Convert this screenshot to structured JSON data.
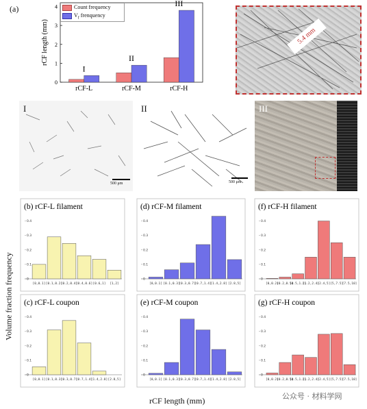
{
  "panel_a": {
    "label": "(a)"
  },
  "chart_a": {
    "type": "bar",
    "categories": [
      "rCF-L",
      "rCF-M",
      "rCF-H"
    ],
    "series": [
      {
        "name": "Count frequency",
        "values": [
          0.15,
          0.5,
          1.3
        ],
        "color": "#ef7a7a"
      },
      {
        "name": "Vf frenquency",
        "values": [
          0.35,
          0.9,
          3.8
        ],
        "color": "#6f6fe8"
      }
    ],
    "bar_labels": [
      "I",
      "II",
      "III"
    ],
    "ylabel": "rCF length (mm)",
    "yticks": [
      0,
      1,
      2,
      3,
      4
    ],
    "ylim": [
      0,
      4.2
    ]
  },
  "legend": {
    "count": "Count frequency",
    "vf_prefix": "V",
    "vf_sub": "f",
    "vf_suffix": " frenquency"
  },
  "photo_top": {
    "scale_label": "5.4 mm"
  },
  "micro": [
    {
      "label": "I",
      "scale": "500 μm"
    },
    {
      "label": "II",
      "scale": "500 μm"
    },
    {
      "label": "III",
      "scale": ""
    }
  ],
  "y_title": "Volume fraction frequency",
  "x_title": "rCF length (mm)",
  "watermark": "公众号 · 材料学网",
  "chart_data": [
    {
      "id": "b",
      "type": "bar",
      "title": "(b) rCF-L filament",
      "color": "#f8f3b0",
      "categories": [
        "[0,0.1]",
        "[0.1,0.2]",
        "[0.2,0.4]",
        "[0.4,0.6]",
        "[0.6,1]",
        "[1,2]"
      ],
      "values": [
        0.1,
        0.29,
        0.245,
        0.16,
        0.135,
        0.06
      ],
      "ylim": [
        0,
        0.45
      ],
      "yticks": [
        "0",
        "0.1",
        "0.2",
        "0.3",
        "0.4"
      ]
    },
    {
      "id": "d",
      "type": "bar",
      "title": "(d) rCF-M filament",
      "color": "#6f6fe8",
      "categories": [
        "[0,0.1]",
        "[0.1,0.3]",
        "[0.3,0.7]",
        "[0.7,1.4]",
        "[1.4,2.8]",
        "[2.8,5]"
      ],
      "values": [
        0.012,
        0.063,
        0.11,
        0.237,
        0.433,
        0.133
      ],
      "ylim": [
        0,
        0.45
      ],
      "yticks": [
        "0",
        "0.1",
        "0.2",
        "0.3",
        "0.4"
      ]
    },
    {
      "id": "f",
      "type": "bar",
      "title": "(f) rCF-H filament",
      "color": "#ef7a7a",
      "categories": [
        "[0,0.2]",
        "[0.2,0.5]",
        "[0.5,1.2]",
        "[1.2,2.4]",
        "[2.4,5]",
        "[5,7.5]",
        "[7.5,10]"
      ],
      "values": [
        0.003,
        0.012,
        0.035,
        0.15,
        0.4,
        0.25,
        0.15
      ],
      "ylim": [
        0,
        0.45
      ],
      "yticks": [
        "0",
        "0.1",
        "0.2",
        "0.3",
        "0.4"
      ]
    },
    {
      "id": "c",
      "type": "bar",
      "title": "(c) rCF-L coupon",
      "color": "#f8f3b0",
      "categories": [
        "[0,0.1]",
        "[0.1,0.3]",
        "[0.3,0.7]",
        "[0.7,1.4]",
        "[1.4,2.8]",
        "[2.8,5]"
      ],
      "values": [
        0.055,
        0.31,
        0.375,
        0.22,
        0.025,
        0.0
      ],
      "ylim": [
        0,
        0.45
      ],
      "yticks": [
        "0",
        "0.1",
        "0.2",
        "0.3",
        "0.4"
      ]
    },
    {
      "id": "e",
      "type": "bar",
      "title": "(e) rCF-M coupon",
      "color": "#6f6fe8",
      "categories": [
        "[0,0.1]",
        "[0.1,0.3]",
        "[0.3,0.7]",
        "[0.7,1.4]",
        "[1.4,2.8]",
        "[2.8,5]"
      ],
      "values": [
        0.01,
        0.085,
        0.385,
        0.31,
        0.175,
        0.02
      ],
      "ylim": [
        0,
        0.45
      ],
      "yticks": [
        "0",
        "0.1",
        "0.2",
        "0.3",
        "0.4"
      ]
    },
    {
      "id": "g",
      "type": "bar",
      "title": "(g) rCF-H coupon",
      "color": "#ef7a7a",
      "categories": [
        "[0,0.2]",
        "[0.2,0.5]",
        "[0.5,1.2]",
        "[1.2,2.4]",
        "[2.4,5]",
        "[5,7.5]",
        "[7.5,10]"
      ],
      "values": [
        0.012,
        0.085,
        0.137,
        0.12,
        0.28,
        0.285,
        0.07
      ],
      "ylim": [
        0,
        0.45
      ],
      "yticks": [
        "0",
        "0.1",
        "0.2",
        "0.3",
        "0.4"
      ]
    }
  ]
}
